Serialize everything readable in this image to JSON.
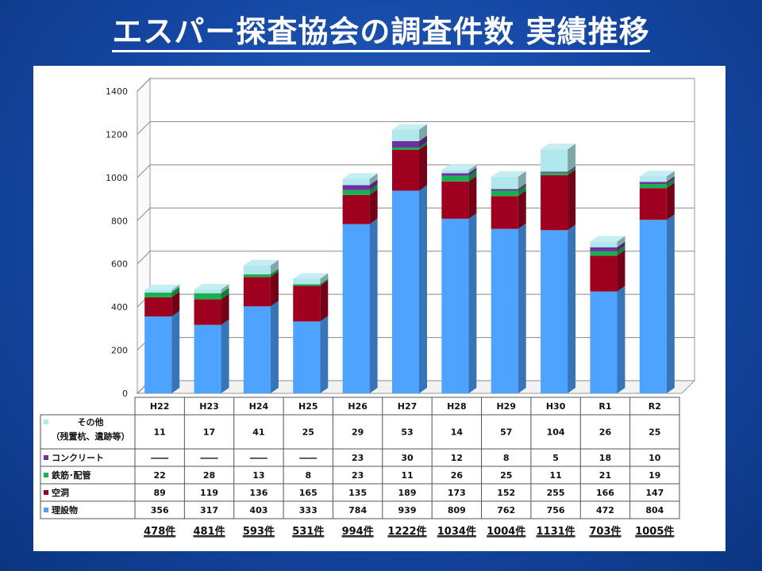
{
  "title": "エスパー探査協会の調査件数 実績推移",
  "colors": {
    "background": "#1447a3",
    "buried": "#4da3ff",
    "cavity": "#a00020",
    "rebar": "#18b050",
    "concrete": "#7030a0",
    "other": "#b0e8ec"
  },
  "chart_data": {
    "type": "bar",
    "stacked": true,
    "three_d": true,
    "ylim": [
      0,
      1400
    ],
    "yticks": [
      0,
      200,
      400,
      600,
      800,
      1000,
      1200,
      1400
    ],
    "grid": true,
    "categories": [
      "H22",
      "H23",
      "H24",
      "H25",
      "H26",
      "H27",
      "H28",
      "H29",
      "H30",
      "R1",
      "R2"
    ],
    "series": [
      {
        "key": "buried",
        "name": "理設物",
        "values": [
          356,
          317,
          403,
          333,
          784,
          939,
          809,
          762,
          756,
          472,
          804
        ]
      },
      {
        "key": "cavity",
        "name": "空洞",
        "values": [
          89,
          119,
          136,
          165,
          135,
          189,
          173,
          152,
          255,
          166,
          147
        ]
      },
      {
        "key": "rebar",
        "name": "鉄筋･配管",
        "values": [
          22,
          28,
          13,
          8,
          23,
          11,
          26,
          25,
          11,
          21,
          19
        ]
      },
      {
        "key": "concrete",
        "name": "コンクリート",
        "values": [
          null,
          null,
          null,
          null,
          23,
          30,
          12,
          8,
          5,
          18,
          10
        ]
      },
      {
        "key": "other",
        "name": "その他",
        "name_sub": "（残置杭、遺跡等）",
        "values": [
          11,
          17,
          41,
          25,
          29,
          53,
          14,
          57,
          104,
          26,
          25
        ]
      }
    ],
    "missing_mark": "――",
    "totals": [
      "478件",
      "481件",
      "593件",
      "531件",
      "994件",
      "1222件",
      "1034件",
      "1004件",
      "1131件",
      "703件",
      "1005件"
    ]
  }
}
